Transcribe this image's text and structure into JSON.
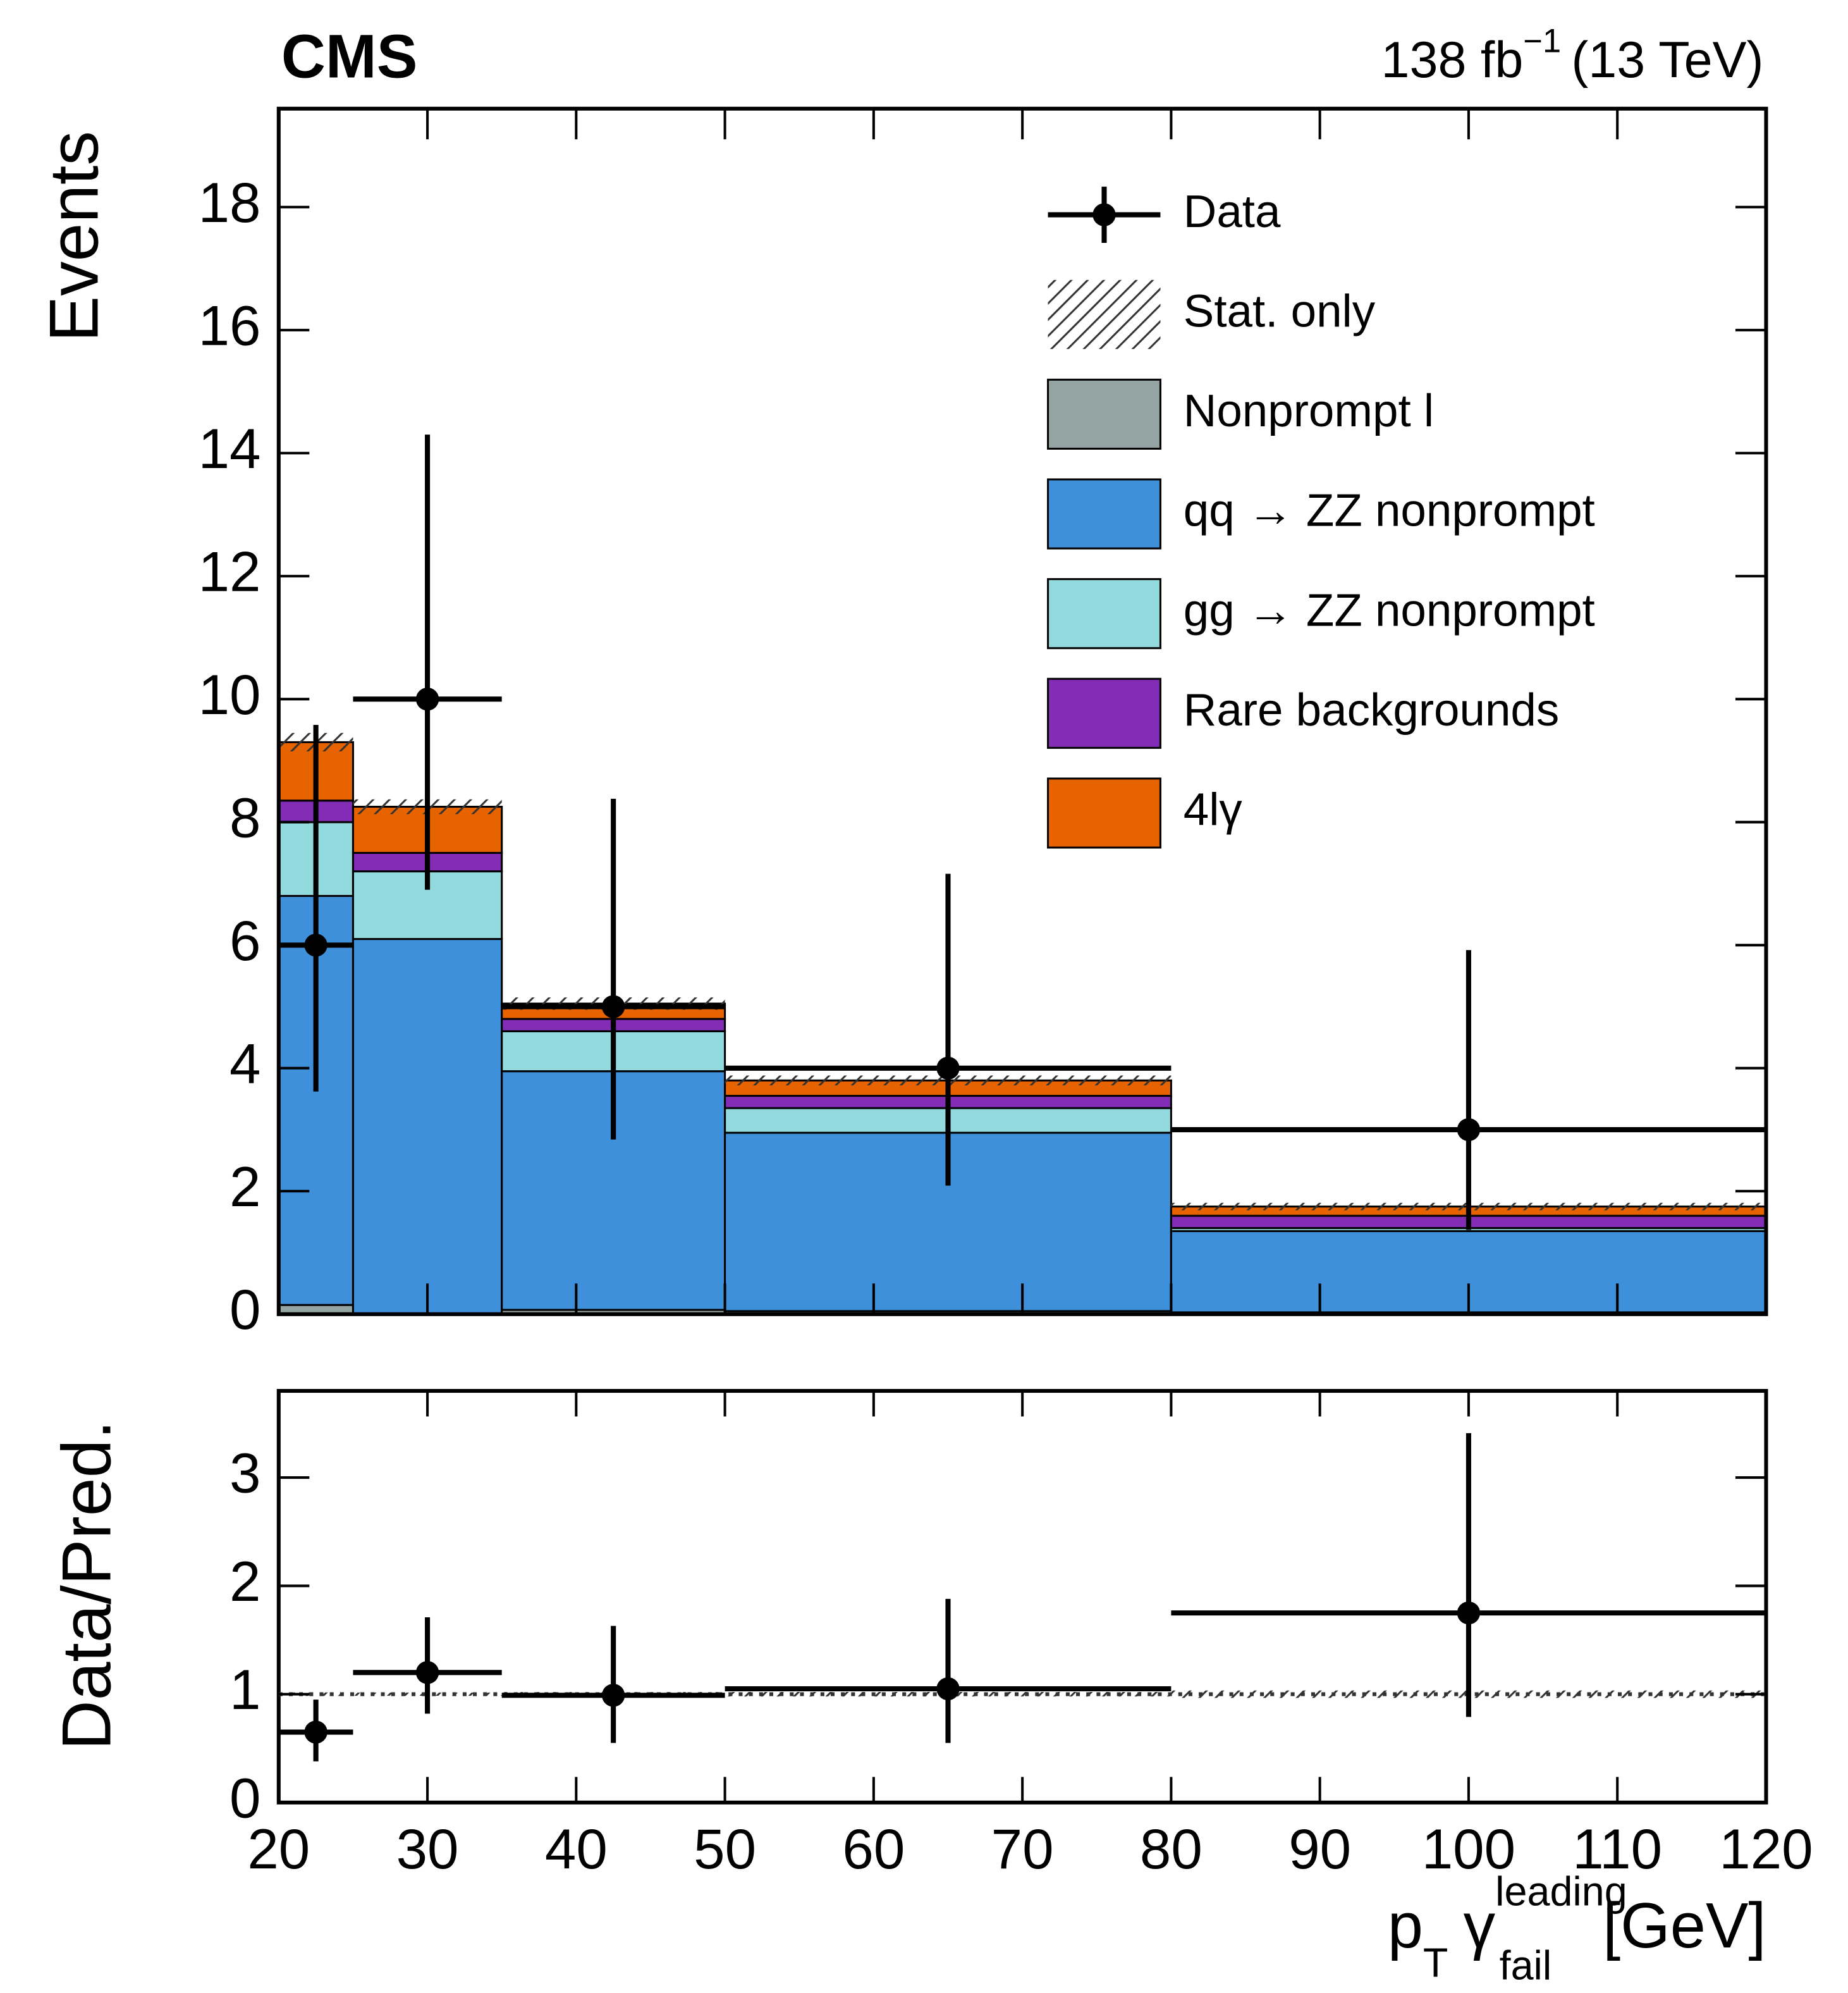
{
  "chart_data": [
    {
      "type": "stacked_histogram",
      "experiment": "CMS",
      "lumi": {
        "main": "138 fb",
        "sup": "−1",
        "rest": "(13 TeV)"
      },
      "y_label": "Events",
      "bins": [
        20,
        25,
        35,
        50,
        80,
        120
      ],
      "ylim": [
        0,
        19.6
      ],
      "yticks": [
        0,
        2,
        4,
        6,
        8,
        10,
        12,
        14,
        16,
        18
      ],
      "series": [
        {
          "name": "Nonprompt l",
          "color": "#94a4a2",
          "values": [
            0.15,
            0,
            0.07,
            0.05,
            0.03
          ]
        },
        {
          "name": "qq → ZZ nonprompt",
          "color": "#3f90da",
          "values": [
            6.65,
            6.1,
            3.88,
            2.9,
            1.32
          ]
        },
        {
          "name": "gg → ZZ nonprompt",
          "color": "#92dadd",
          "values": [
            1.2,
            1.1,
            0.65,
            0.4,
            0.05
          ]
        },
        {
          "name": "Rare backgrounds",
          "color": "#832db6",
          "values": [
            0.35,
            0.3,
            0.2,
            0.2,
            0.2
          ]
        },
        {
          "name": "4lγ",
          "color": "#e76300",
          "values": [
            0.95,
            0.75,
            0.25,
            0.25,
            0.15
          ]
        }
      ],
      "stat_name": "Stat. only",
      "stat_unc": [
        0.15,
        0.12,
        0.1,
        0.08,
        0.06
      ],
      "data": {
        "name": "Data",
        "x": [
          22.5,
          30,
          42.5,
          65,
          100
        ],
        "values": [
          6,
          10,
          5,
          4,
          3
        ],
        "err_up": [
          3.58,
          4.3,
          3.38,
          3.16,
          2.92
        ],
        "err_down": [
          2.38,
          3.1,
          2.16,
          1.91,
          1.63
        ]
      }
    },
    {
      "type": "ratio",
      "y_label": "Data/Pred.",
      "x_label": {
        "p": "p",
        "sub1": "T",
        "gamma": "γ",
        "sup": "leading",
        "sub2": "fail",
        "unit": "[GeV]"
      },
      "xlim": [
        20,
        120
      ],
      "xticks": [
        20,
        30,
        40,
        50,
        60,
        70,
        80,
        90,
        100,
        110,
        120
      ],
      "ylim": [
        0,
        3.8
      ],
      "yticks": [
        0,
        1,
        2,
        3
      ],
      "x": [
        22.5,
        30,
        42.5,
        65,
        100
      ],
      "values": [
        0.65,
        1.2,
        0.99,
        1.05,
        1.75
      ],
      "err_up": [
        0.3,
        0.51,
        0.64,
        0.83,
        1.66
      ],
      "err_down": [
        0.27,
        0.38,
        0.44,
        0.5,
        0.96
      ]
    }
  ]
}
